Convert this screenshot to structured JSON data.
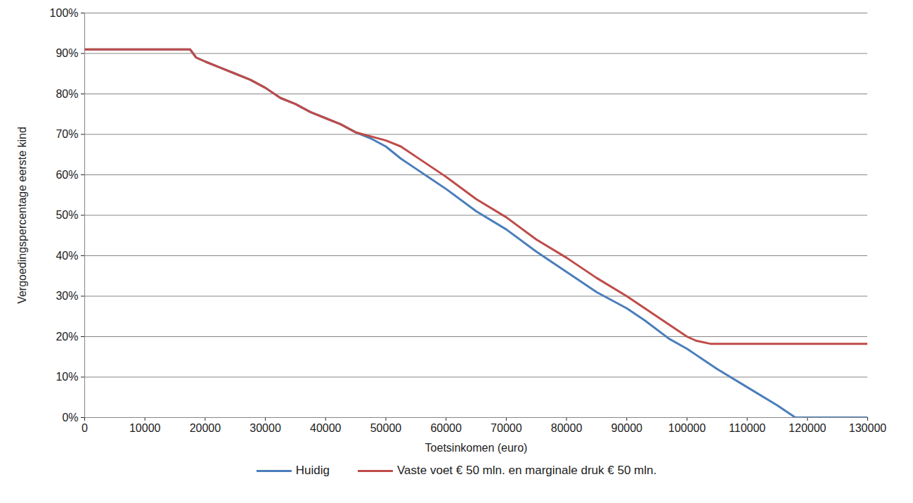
{
  "chart_data": {
    "type": "line",
    "x_label": "Toetsinkomen (euro)",
    "y_label": "Vergoedingspercentage eerste kind",
    "x": [
      0,
      17500,
      18500,
      20000,
      22500,
      25000,
      27500,
      30000,
      32500,
      35000,
      37500,
      40000,
      42500,
      45000,
      47500,
      50000,
      52500,
      55000,
      60000,
      65000,
      70000,
      75000,
      80000,
      85000,
      90000,
      93000,
      97000,
      100000,
      101500,
      104000,
      105000,
      110000,
      115000,
      118000,
      130000
    ],
    "series": [
      {
        "name": "Huidig",
        "color": "#4a7ebb",
        "values": [
          91,
          91,
          89,
          88,
          86.5,
          85,
          83.5,
          81.5,
          79,
          77.5,
          75.5,
          74,
          72.5,
          70.5,
          69,
          67,
          64,
          61.5,
          56.5,
          51,
          46.5,
          41,
          36,
          31,
          27,
          24,
          19.5,
          17,
          15.5,
          13,
          12,
          7.5,
          3,
          0,
          0
        ]
      },
      {
        "name": "Vaste voet € 50 mln. en marginale druk € 50 mln.",
        "color": "#be4b48",
        "values": [
          91,
          91,
          89,
          88,
          86.5,
          85,
          83.5,
          81.5,
          79,
          77.5,
          75.5,
          74,
          72.5,
          70.5,
          69.5,
          68.5,
          67,
          64.5,
          59.5,
          54,
          49.5,
          44,
          39.5,
          34.5,
          30,
          27,
          23,
          20,
          19,
          18.2,
          18.2,
          18.2,
          18.2,
          18.2,
          18.2
        ]
      }
    ],
    "xlim": [
      0,
      130000
    ],
    "xticks": [
      0,
      10000,
      20000,
      30000,
      40000,
      50000,
      60000,
      70000,
      80000,
      90000,
      100000,
      110000,
      120000,
      130000
    ],
    "ylim": [
      0,
      100
    ],
    "yticks": [
      {
        "value": 0,
        "label": "0%"
      },
      {
        "value": 10,
        "label": "10%"
      },
      {
        "value": 20,
        "label": "20%"
      },
      {
        "value": 30,
        "label": "30%"
      },
      {
        "value": 40,
        "label": "40%"
      },
      {
        "value": 50,
        "label": "50%"
      },
      {
        "value": 60,
        "label": "60%"
      },
      {
        "value": 70,
        "label": "70%"
      },
      {
        "value": 80,
        "label": "80%"
      },
      {
        "value": 90,
        "label": "90%"
      },
      {
        "value": 100,
        "label": "100%"
      }
    ],
    "grid": true,
    "legend": "bottom"
  }
}
